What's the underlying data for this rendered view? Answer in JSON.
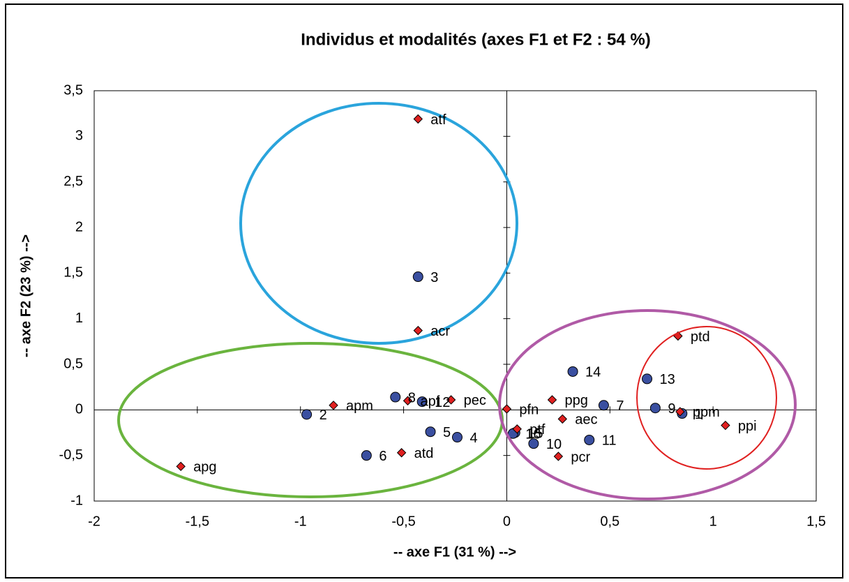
{
  "chart_data": {
    "type": "scatter",
    "title": "Individus et modalités (axes F1 et F2 : 54 %)",
    "x_label": "-- axe F1 (31 %) -->",
    "y_label": "-- axe F2 (23 %) -->",
    "xlim": [
      -2,
      1.5
    ],
    "ylim": [
      -1,
      3.5
    ],
    "xticks": [
      -2,
      {
        "value": -1.5,
        "label": "-1,5"
      },
      -1,
      {
        "value": -0.5,
        "label": "-0,5"
      },
      0,
      {
        "value": 0.5,
        "label": "0,5"
      },
      1,
      {
        "value": 1.5,
        "label": "1,5"
      }
    ],
    "yticks": [
      -1,
      {
        "value": -0.5,
        "label": "-0,5"
      },
      0,
      {
        "value": 0.5,
        "label": "0,5"
      },
      1,
      {
        "value": 1.5,
        "label": "1,5"
      },
      2,
      {
        "value": 2.5,
        "label": "2,5"
      },
      3,
      {
        "value": 3.5,
        "label": "3,5"
      }
    ],
    "grid": false,
    "series": [
      {
        "color": "#3a4fa0",
        "marker": "circle",
        "labels": [
          "3",
          "2",
          "8",
          "12",
          "5",
          "4",
          "6",
          "14",
          "13",
          "7",
          "9",
          "1",
          "11",
          "10",
          "15",
          "16"
        ],
        "x": [
          -0.43,
          -0.97,
          -0.54,
          -0.41,
          -0.37,
          -0.24,
          -0.68,
          0.32,
          0.68,
          0.47,
          0.72,
          0.85,
          0.4,
          0.13,
          0.04,
          0.03
        ],
        "values": [
          1.46,
          -0.05,
          0.14,
          0.09,
          -0.24,
          -0.3,
          -0.5,
          0.42,
          0.34,
          0.05,
          0.02,
          -0.04,
          -0.33,
          -0.37,
          -0.25,
          -0.26
        ]
      },
      {
        "color": "#e02020",
        "marker": "diamond",
        "labels": [
          "atf",
          "acr",
          "apm",
          "apf",
          "pec",
          "apg",
          "atd",
          "pfn",
          "ptf",
          "ppg",
          "aec",
          "pcr",
          "ptd",
          "ppm",
          "ppi"
        ],
        "x": [
          -0.43,
          -0.43,
          -0.84,
          -0.48,
          -0.27,
          -1.58,
          -0.51,
          0.0,
          0.05,
          0.22,
          0.27,
          0.25,
          0.83,
          0.84,
          1.06
        ],
        "values": [
          3.19,
          0.87,
          0.05,
          0.1,
          0.11,
          -0.62,
          -0.47,
          0.01,
          -0.21,
          0.11,
          -0.1,
          -0.51,
          0.81,
          -0.02,
          -0.17
        ]
      }
    ]
  }
}
